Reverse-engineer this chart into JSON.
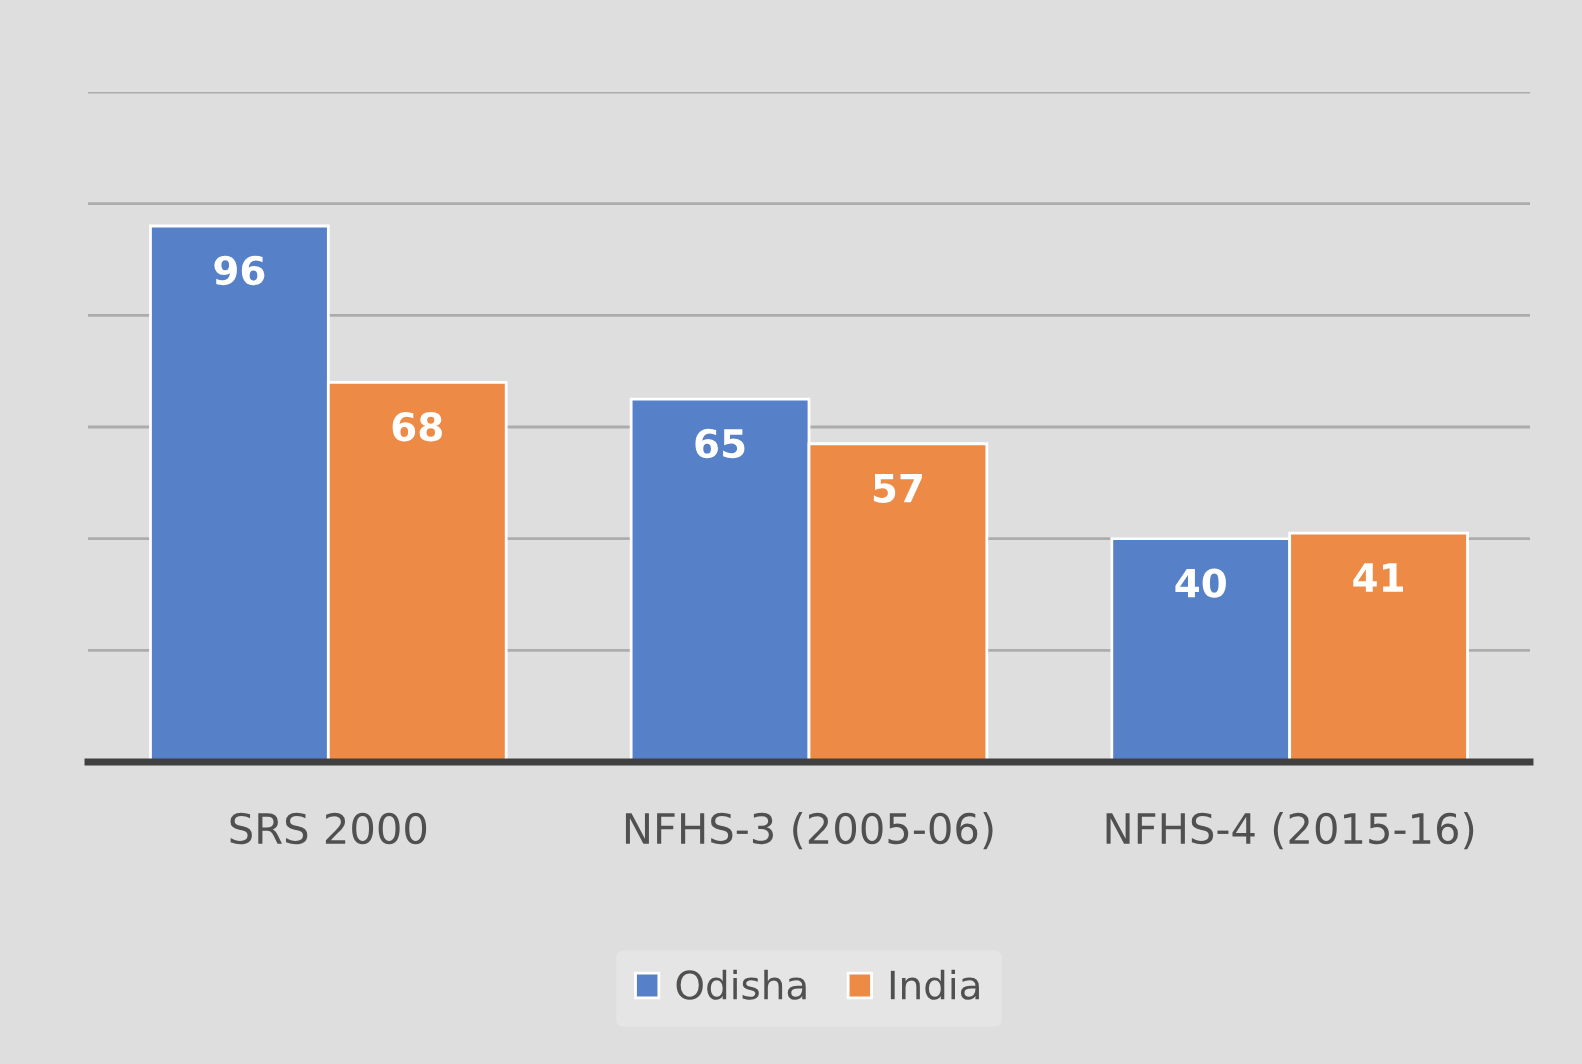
{
  "chart_data": {
    "type": "bar",
    "categories": [
      "SRS 2000",
      "NFHS-3 (2005-06)",
      "NFHS-4 (2015-16)"
    ],
    "series": [
      {
        "name": "Odisha",
        "color": "#5681c8",
        "values": [
          96,
          65,
          40
        ]
      },
      {
        "name": "India",
        "color": "#ec8a46",
        "values": [
          68,
          57,
          41
        ]
      }
    ],
    "ylim": [
      0,
      120
    ],
    "yticks": [
      {
        "value": 0,
        "label": null
      },
      {
        "value": 20,
        "label": null
      },
      {
        "value": 40,
        "label": null
      },
      {
        "value": 60,
        "label": null
      },
      {
        "value": 80,
        "label": null
      },
      {
        "value": 100,
        "label": null
      },
      {
        "value": 120,
        "label": null
      }
    ],
    "grid": "y",
    "legend": "bottom",
    "tick_labels": "x",
    "data_labels": true
  }
}
